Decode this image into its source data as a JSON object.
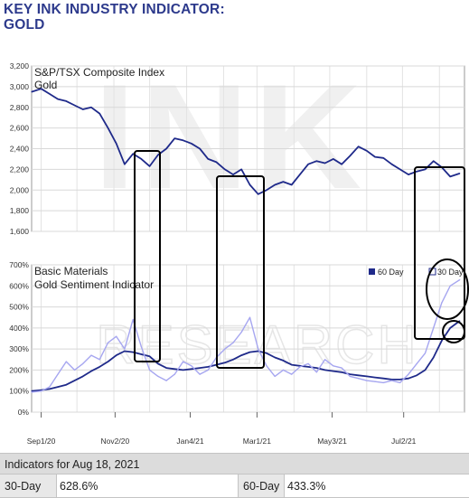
{
  "page_title": "KEY INK INDUSTRY INDICATOR:\nGOLD",
  "watermark": {
    "top": "INK",
    "bottom": "RESEARCH"
  },
  "x_tick_labels": [
    "Sep1/20",
    "Nov2/20",
    "Jan4/21",
    "Mar1/21",
    "May3/21",
    "Jul2/21"
  ],
  "chart_data": [
    {
      "type": "line",
      "title": "S&P/TSX Composite Index",
      "subtitle": "Gold",
      "ylim": [
        1600,
        3200
      ],
      "yticks": [
        1600,
        1800,
        2000,
        2200,
        2400,
        2600,
        2800,
        3000,
        3200
      ],
      "ytick_labels": [
        "1,600",
        "1,800",
        "2,000",
        "2,200",
        "2,400",
        "2,600",
        "2,800",
        "3,000",
        "3,200"
      ],
      "grid": true,
      "series": [
        {
          "color": "#1f2a8a",
          "x": [
            "2020-08-24",
            "2020-09-01",
            "2020-09-08",
            "2020-09-15",
            "2020-09-22",
            "2020-09-29",
            "2020-10-06",
            "2020-10-13",
            "2020-10-20",
            "2020-10-27",
            "2020-11-03",
            "2020-11-10",
            "2020-11-17",
            "2020-11-24",
            "2020-12-01",
            "2020-12-08",
            "2020-12-15",
            "2020-12-22",
            "2020-12-29",
            "2021-01-05",
            "2021-01-12",
            "2021-01-19",
            "2021-01-26",
            "2021-02-02",
            "2021-02-09",
            "2021-02-16",
            "2021-02-23",
            "2021-03-02",
            "2021-03-09",
            "2021-03-16",
            "2021-03-23",
            "2021-03-30",
            "2021-04-06",
            "2021-04-13",
            "2021-04-20",
            "2021-04-27",
            "2021-05-04",
            "2021-05-11",
            "2021-05-18",
            "2021-05-25",
            "2021-06-01",
            "2021-06-08",
            "2021-06-15",
            "2021-06-22",
            "2021-06-29",
            "2021-07-06",
            "2021-07-13",
            "2021-07-20",
            "2021-07-27",
            "2021-08-03",
            "2021-08-10",
            "2021-08-18"
          ],
          "values": [
            2950,
            2980,
            2930,
            2880,
            2860,
            2820,
            2780,
            2800,
            2740,
            2600,
            2450,
            2250,
            2350,
            2300,
            2230,
            2340,
            2400,
            2500,
            2480,
            2450,
            2400,
            2300,
            2270,
            2200,
            2150,
            2200,
            2050,
            1960,
            2000,
            2050,
            2080,
            2050,
            2150,
            2250,
            2280,
            2260,
            2300,
            2250,
            2330,
            2420,
            2380,
            2320,
            2310,
            2250,
            2200,
            2150,
            2180,
            2200,
            2280,
            2220,
            2130,
            2160
          ]
        }
      ]
    },
    {
      "type": "line",
      "title": "Basic Materials",
      "subtitle": "Gold Sentiment Indicator",
      "ylim": [
        0,
        700
      ],
      "yticks": [
        0,
        100,
        200,
        300,
        400,
        500,
        600,
        700
      ],
      "ytick_labels": [
        "0%",
        "100%",
        "200%",
        "300%",
        "400%",
        "500%",
        "600%",
        "700%"
      ],
      "grid": true,
      "legend": {
        "placement": "top-right",
        "entries": [
          "60 Day",
          "30 Day"
        ]
      },
      "series": [
        {
          "name": "60 Day",
          "color": "#1f2a8a",
          "x": [
            "2020-08-24",
            "2020-09-01",
            "2020-09-08",
            "2020-09-15",
            "2020-09-22",
            "2020-09-29",
            "2020-10-06",
            "2020-10-13",
            "2020-10-20",
            "2020-10-27",
            "2020-11-03",
            "2020-11-10",
            "2020-11-17",
            "2020-11-24",
            "2020-12-01",
            "2020-12-08",
            "2020-12-15",
            "2020-12-22",
            "2020-12-29",
            "2021-01-05",
            "2021-01-12",
            "2021-01-19",
            "2021-01-26",
            "2021-02-02",
            "2021-02-09",
            "2021-02-16",
            "2021-02-23",
            "2021-03-02",
            "2021-03-09",
            "2021-03-16",
            "2021-03-23",
            "2021-03-30",
            "2021-04-06",
            "2021-04-13",
            "2021-04-20",
            "2021-04-27",
            "2021-05-04",
            "2021-05-11",
            "2021-05-18",
            "2021-05-25",
            "2021-06-01",
            "2021-06-08",
            "2021-06-15",
            "2021-06-22",
            "2021-06-29",
            "2021-07-06",
            "2021-07-13",
            "2021-07-20",
            "2021-07-27",
            "2021-08-03",
            "2021-08-10",
            "2021-08-18"
          ],
          "values": [
            100,
            105,
            110,
            120,
            130,
            150,
            170,
            195,
            215,
            240,
            270,
            290,
            285,
            275,
            265,
            230,
            210,
            205,
            200,
            205,
            210,
            215,
            225,
            235,
            250,
            270,
            285,
            290,
            280,
            260,
            245,
            225,
            220,
            215,
            210,
            200,
            195,
            190,
            180,
            175,
            170,
            165,
            160,
            155,
            155,
            160,
            175,
            200,
            260,
            340,
            400,
            433.3
          ]
        },
        {
          "name": "30 Day",
          "color": "#a6a6f0",
          "x": [
            "2020-08-24",
            "2020-09-01",
            "2020-09-08",
            "2020-09-15",
            "2020-09-22",
            "2020-09-29",
            "2020-10-06",
            "2020-10-13",
            "2020-10-20",
            "2020-10-27",
            "2020-11-03",
            "2020-11-10",
            "2020-11-17",
            "2020-11-24",
            "2020-12-01",
            "2020-12-08",
            "2020-12-15",
            "2020-12-22",
            "2020-12-29",
            "2021-01-05",
            "2021-01-12",
            "2021-01-19",
            "2021-01-26",
            "2021-02-02",
            "2021-02-09",
            "2021-02-16",
            "2021-02-23",
            "2021-03-02",
            "2021-03-09",
            "2021-03-16",
            "2021-03-23",
            "2021-03-30",
            "2021-04-06",
            "2021-04-13",
            "2021-04-20",
            "2021-04-27",
            "2021-05-04",
            "2021-05-11",
            "2021-05-18",
            "2021-05-25",
            "2021-06-01",
            "2021-06-08",
            "2021-06-15",
            "2021-06-22",
            "2021-06-29",
            "2021-07-06",
            "2021-07-13",
            "2021-07-20",
            "2021-07-27",
            "2021-08-03",
            "2021-08-10",
            "2021-08-18"
          ],
          "values": [
            95,
            100,
            120,
            180,
            240,
            200,
            230,
            270,
            250,
            330,
            360,
            300,
            440,
            310,
            200,
            170,
            150,
            180,
            240,
            220,
            180,
            200,
            260,
            300,
            330,
            380,
            450,
            300,
            220,
            170,
            200,
            180,
            215,
            230,
            190,
            250,
            220,
            210,
            170,
            160,
            150,
            145,
            140,
            150,
            140,
            180,
            230,
            280,
            400,
            520,
            600,
            628.6
          ]
        }
      ]
    }
  ],
  "indicators": {
    "header": "Indicators for Aug 18, 2021",
    "thirty_day_label": "30-Day",
    "thirty_day_value": "628.6%",
    "sixty_day_label": "60-Day",
    "sixty_day_value": "433.3%"
  }
}
